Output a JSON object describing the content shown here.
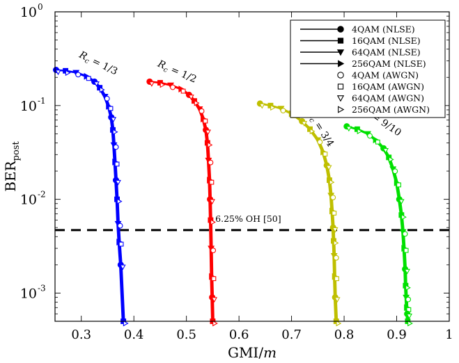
{
  "chart_data": {
    "type": "line",
    "xlabel": "GMI/m",
    "ylabel": "BER_post",
    "xlim": [
      0.25,
      1.0
    ],
    "ylim": [
      0.0005,
      1.0
    ],
    "yscale": "log",
    "grid": false,
    "legend_position": "top-right",
    "x_ticks": [
      "0.3",
      "0.4",
      "0.5",
      "0.6",
      "0.7",
      "0.8",
      "0.9",
      "1"
    ],
    "y_ticks": [
      {
        "value": 1,
        "exp": "0"
      },
      {
        "value": 0.1,
        "exp": "-1"
      },
      {
        "value": 0.01,
        "exp": "-2"
      },
      {
        "value": 0.001,
        "exp": "-3"
      }
    ],
    "threshold": {
      "y": 0.0047,
      "label": "6.25% OH [50]"
    },
    "legend": [
      {
        "label": "4QAM (NLSE)",
        "marker": "circle",
        "filled": true,
        "line": true
      },
      {
        "label": "16QAM (NLSE)",
        "marker": "square",
        "filled": true,
        "line": true
      },
      {
        "label": "64QAM (NLSE)",
        "marker": "triangle-down",
        "filled": true,
        "line": true
      },
      {
        "label": "256QAM (NLSE)",
        "marker": "triangle-right",
        "filled": true,
        "line": true
      },
      {
        "label": "4QAM (AWGN)",
        "marker": "circle",
        "filled": false,
        "line": false
      },
      {
        "label": "16QAM (AWGN)",
        "marker": "square",
        "filled": false,
        "line": false
      },
      {
        "label": "64QAM (AWGN)",
        "marker": "triangle-down",
        "filled": false,
        "line": false
      },
      {
        "label": "256QAM (AWGN)",
        "marker": "triangle-right",
        "filled": false,
        "line": false
      }
    ],
    "groups": [
      {
        "rate": "1/3",
        "color": "#0000ff",
        "x": [
          0.252,
          0.27,
          0.29,
          0.31,
          0.325,
          0.335,
          0.345,
          0.352,
          0.357,
          0.36,
          0.362,
          0.364,
          0.366,
          0.368,
          0.37,
          0.372,
          0.375,
          0.38
        ],
        "y": [
          0.24,
          0.235,
          0.225,
          0.205,
          0.18,
          0.155,
          0.125,
          0.098,
          0.075,
          0.055,
          0.038,
          0.025,
          0.016,
          0.01,
          0.0055,
          0.0035,
          0.002,
          0.0005
        ]
      },
      {
        "rate": "1/2",
        "color": "#ff0000",
        "x": [
          0.43,
          0.45,
          0.47,
          0.49,
          0.505,
          0.515,
          0.525,
          0.532,
          0.537,
          0.54,
          0.542,
          0.544,
          0.545,
          0.546,
          0.547,
          0.548,
          0.549,
          0.55
        ],
        "y": [
          0.18,
          0.175,
          0.165,
          0.15,
          0.13,
          0.112,
          0.092,
          0.072,
          0.055,
          0.04,
          0.026,
          0.016,
          0.01,
          0.006,
          0.003,
          0.0015,
          0.0009,
          0.0005
        ]
      },
      {
        "rate": "3/4",
        "color": "#bfbf00",
        "x": [
          0.64,
          0.66,
          0.68,
          0.7,
          0.72,
          0.735,
          0.75,
          0.76,
          0.767,
          0.772,
          0.775,
          0.777,
          0.779,
          0.78,
          0.781,
          0.782,
          0.783,
          0.785
        ],
        "y": [
          0.105,
          0.1,
          0.093,
          0.082,
          0.068,
          0.056,
          0.043,
          0.032,
          0.023,
          0.016,
          0.011,
          0.0075,
          0.005,
          0.0036,
          0.0025,
          0.0015,
          0.0009,
          0.0005
        ]
      },
      {
        "rate": "9/10",
        "color": "#00e000",
        "x": [
          0.805,
          0.825,
          0.845,
          0.86,
          0.875,
          0.885,
          0.893,
          0.9,
          0.905,
          0.909,
          0.912,
          0.914,
          0.916,
          0.917,
          0.918,
          0.919,
          0.92,
          0.921
        ],
        "y": [
          0.06,
          0.056,
          0.05,
          0.043,
          0.035,
          0.028,
          0.021,
          0.015,
          0.01,
          0.0068,
          0.0045,
          0.003,
          0.0018,
          0.0012,
          0.0009,
          0.0007,
          0.0006,
          0.0005
        ]
      }
    ],
    "annotations": [
      {
        "text": "R_c = 1/3",
        "x": 0.33,
        "y": 0.265
      },
      {
        "text": "R_c = 1/2",
        "x": 0.48,
        "y": 0.215
      },
      {
        "text": "R_c = 3/4",
        "x": 0.75,
        "y": 0.055
      },
      {
        "text": "R_c = 9/10",
        "x": 0.866,
        "y": 0.065
      }
    ]
  }
}
